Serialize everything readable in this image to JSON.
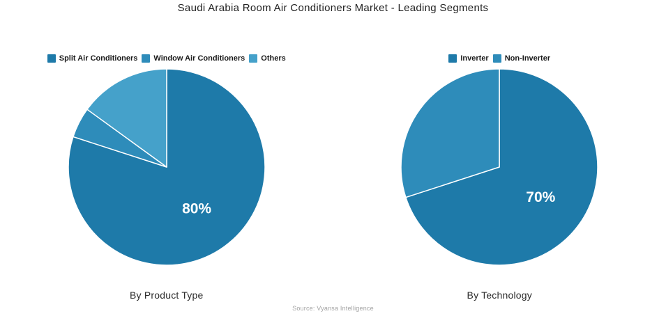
{
  "header": {
    "title": "Saudi Arabia Room Air Conditioners Market - Leading Segments"
  },
  "footer": {
    "source_note": "Source: Vyansa Intelligence"
  },
  "colors": {
    "series_dark_blue": "#1e7aa9",
    "series_medium_blue": "#2e8cba",
    "series_light_blue": "#45a1ca",
    "data_label_text": "#ffffff"
  },
  "chart_data": [
    {
      "type": "pie",
      "title": "By Product Type",
      "legend_position": "top",
      "start_angle_deg": 0,
      "direction": "clockwise",
      "slices": [
        {
          "label": "Split Air Conditioners",
          "value": 80,
          "color": "#1e7aa9",
          "data_label": "80%"
        },
        {
          "label": "Window Air Conditioners",
          "value": 5,
          "color": "#2e8cba",
          "data_label": ""
        },
        {
          "label": "Others",
          "value": 15,
          "color": "#45a1ca",
          "data_label": ""
        }
      ]
    },
    {
      "type": "pie",
      "title": "By Technology",
      "legend_position": "top",
      "start_angle_deg": 0,
      "direction": "clockwise",
      "slices": [
        {
          "label": "Inverter",
          "value": 70,
          "color": "#1e7aa9",
          "data_label": "70%"
        },
        {
          "label": "Non-Inverter",
          "value": 30,
          "color": "#2e8cba",
          "data_label": ""
        }
      ]
    }
  ]
}
